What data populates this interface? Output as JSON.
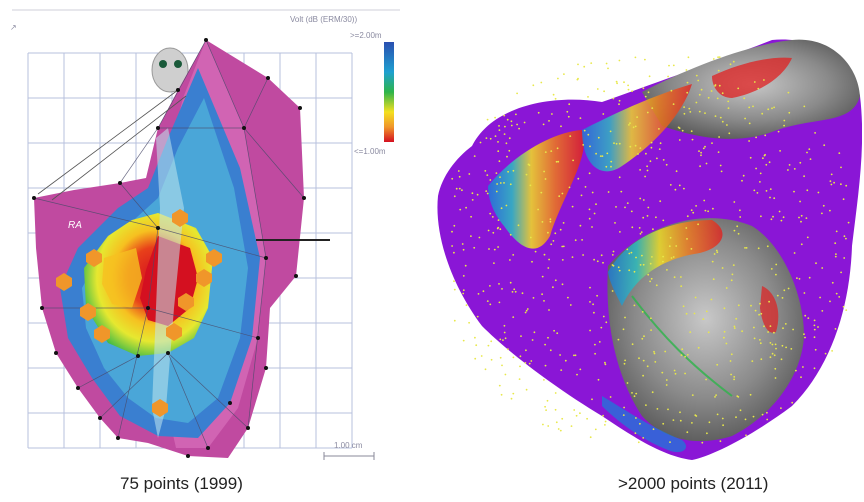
{
  "left_panel": {
    "header_text": "Volt (dB (ERM/30))",
    "scale_max_label": ">=2.00m",
    "scale_min_label": "<=1.00m",
    "chamber_label": "RA",
    "scale_bar_label": "1.00 cm",
    "caption": "75 points (1999)",
    "colors": {
      "scar": "#d41020",
      "healthy": "#c04aa0",
      "mid_blue": "#3a7fd0",
      "yellow": "#f4e020",
      "green": "#2db44a",
      "orange_marker": "#f0962a"
    }
  },
  "right_panel": {
    "caption": ">2000 points (2011)",
    "colors": {
      "healthy": "#8a16d6",
      "scar_gray": "#7a7a7a",
      "point": "#e8e84a",
      "red": "#e02020",
      "blue": "#1e7ad8"
    }
  }
}
